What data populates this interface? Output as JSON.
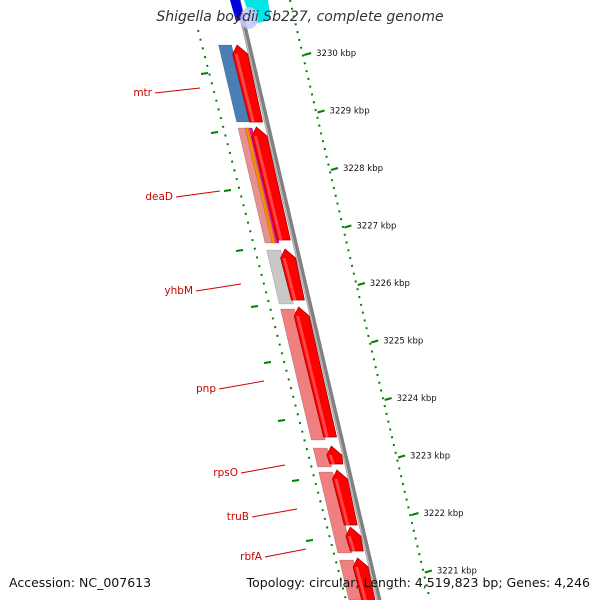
{
  "title": "Shigella boydii Sb227, complete genome",
  "footer": {
    "accession": "Accession: NC_007613",
    "topology": "Topology: circular; Length: 4,519,823 bp; Genes: 4,246"
  },
  "ticks": [
    "3230 kbp",
    "3229 kbp",
    "3228 kbp",
    "3227 kbp",
    "3226 kbp",
    "3225 kbp",
    "3224 kbp",
    "3223 kbp",
    "3222 kbp",
    "3221 kbp"
  ],
  "genes": [
    "mtr",
    "deaD",
    "yhbM",
    "pnp",
    "rpsO",
    "truB",
    "rbfA"
  ],
  "colors": {
    "cds": "#ff0000",
    "cds_highlight": "#ff8080",
    "ticks": "#008000",
    "labels": "#cc0000",
    "backbone": "#808080",
    "mtr_track": "#4a7fb5",
    "yhbM_track": "#c8c8c8",
    "pnp_track": "#f08080",
    "deaD_stripes": [
      "#e89090",
      "#ff8c00",
      "#ff00aa"
    ],
    "top_blue": "#0000dd",
    "top_cyan": "#00e5e5"
  }
}
